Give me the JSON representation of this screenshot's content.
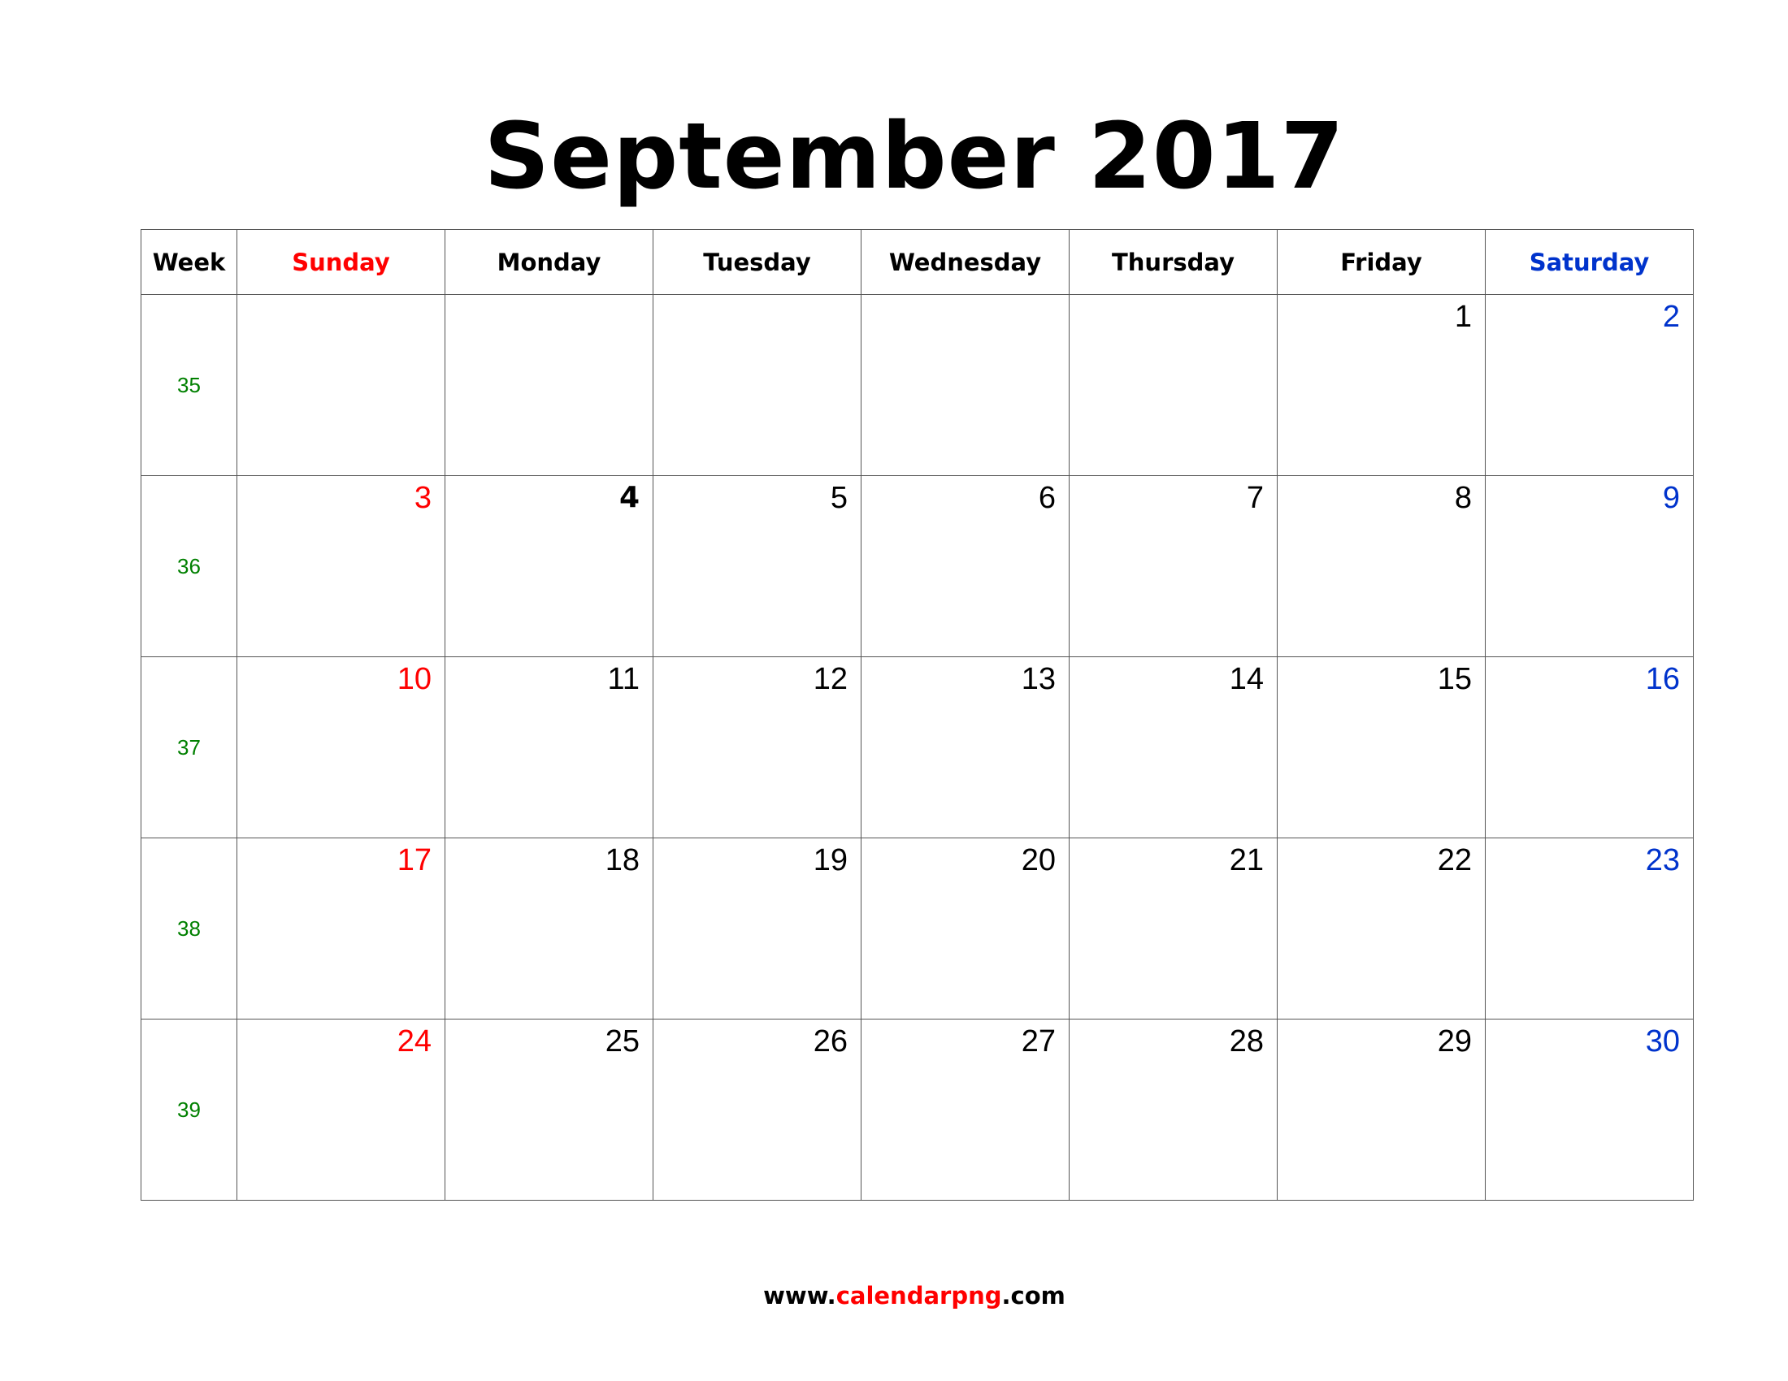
{
  "title": "September 2017",
  "headers": {
    "week": "Week",
    "days": [
      "Sunday",
      "Monday",
      "Tuesday",
      "Wednesday",
      "Thursday",
      "Friday",
      "Saturday"
    ]
  },
  "weeks": [
    {
      "number": "35",
      "days": [
        "",
        "",
        "",
        "",
        "",
        "1",
        "2"
      ]
    },
    {
      "number": "36",
      "days": [
        "3",
        "4",
        "5",
        "6",
        "7",
        "8",
        "9"
      ]
    },
    {
      "number": "37",
      "days": [
        "10",
        "11",
        "12",
        "13",
        "14",
        "15",
        "16"
      ]
    },
    {
      "number": "38",
      "days": [
        "17",
        "18",
        "19",
        "20",
        "21",
        "22",
        "23"
      ]
    },
    {
      "number": "39",
      "days": [
        "24",
        "25",
        "26",
        "27",
        "28",
        "29",
        "30"
      ]
    }
  ],
  "holiday": "4",
  "footer": {
    "prefix": "www.",
    "brand": "calendarpng",
    "suffix": ".com"
  },
  "colors": {
    "sunday": "#ff0000",
    "saturday": "#0033cc",
    "week_number": "#008000",
    "brand": "#ff0000"
  }
}
